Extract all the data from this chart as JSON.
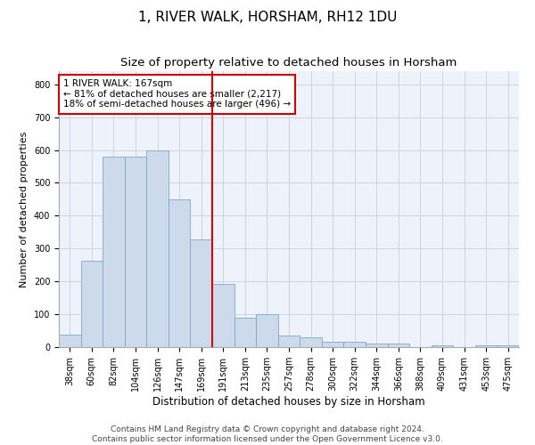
{
  "title": "1, RIVER WALK, HORSHAM, RH12 1DU",
  "subtitle": "Size of property relative to detached houses in Horsham",
  "xlabel": "Distribution of detached houses by size in Horsham",
  "ylabel": "Number of detached properties",
  "categories": [
    "38sqm",
    "60sqm",
    "82sqm",
    "104sqm",
    "126sqm",
    "147sqm",
    "169sqm",
    "191sqm",
    "213sqm",
    "235sqm",
    "257sqm",
    "278sqm",
    "300sqm",
    "322sqm",
    "344sqm",
    "366sqm",
    "388sqm",
    "409sqm",
    "431sqm",
    "453sqm",
    "475sqm"
  ],
  "values": [
    38,
    263,
    580,
    580,
    600,
    450,
    328,
    193,
    90,
    100,
    35,
    30,
    15,
    15,
    10,
    10,
    0,
    5,
    0,
    5,
    5
  ],
  "bar_color": "#ccdaeb",
  "bar_edgecolor": "#7aaac8",
  "vline_color": "#cc0000",
  "annotation_text": "1 RIVER WALK: 167sqm\n← 81% of detached houses are smaller (2,217)\n18% of semi-detached houses are larger (496) →",
  "annotation_box_color": "white",
  "annotation_box_edgecolor": "#cc0000",
  "ylim": [
    0,
    840
  ],
  "yticks": [
    0,
    100,
    200,
    300,
    400,
    500,
    600,
    700,
    800
  ],
  "grid_color": "#c8d0e0",
  "background_color": "#eef2fa",
  "footer1": "Contains HM Land Registry data © Crown copyright and database right 2024.",
  "footer2": "Contains public sector information licensed under the Open Government Licence v3.0.",
  "title_fontsize": 11,
  "subtitle_fontsize": 9.5,
  "xlabel_fontsize": 8.5,
  "ylabel_fontsize": 8,
  "tick_fontsize": 7,
  "annotation_fontsize": 7.5,
  "footer_fontsize": 6.5
}
